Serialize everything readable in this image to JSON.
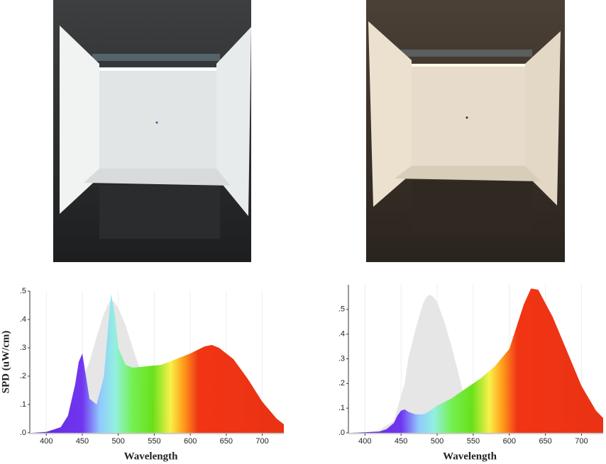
{
  "chart_data": [
    {
      "type": "area",
      "ylabel": "SPD (uW/cm)",
      "xlabel": "Wavelength",
      "x": [
        380,
        400,
        420,
        430,
        440,
        445,
        450,
        455,
        460,
        470,
        480,
        485,
        490,
        495,
        500,
        510,
        520,
        540,
        560,
        580,
        600,
        620,
        630,
        640,
        660,
        680,
        700,
        720,
        730
      ],
      "series": [
        {
          "color": "#e6e6e6",
          "values": [
            0,
            0.005,
            0.01,
            0.04,
            0.1,
            0.14,
            0.18,
            0.22,
            0.25,
            0.34,
            0.42,
            0.45,
            0.47,
            0.46,
            0.44,
            0.38,
            0.3,
            0.15,
            0.06,
            0.02,
            0,
            0,
            0,
            0,
            0,
            0,
            0,
            0,
            0
          ]
        },
        {
          "color": "spectrum",
          "values": [
            0,
            0.003,
            0.02,
            0.06,
            0.17,
            0.25,
            0.28,
            0.2,
            0.12,
            0.1,
            0.2,
            0.35,
            0.49,
            0.42,
            0.3,
            0.24,
            0.23,
            0.235,
            0.24,
            0.26,
            0.28,
            0.305,
            0.31,
            0.3,
            0.26,
            0.19,
            0.11,
            0.05,
            0.03
          ]
        }
      ],
      "xlim": [
        380,
        730
      ],
      "xticks": [
        400,
        450,
        500,
        550,
        600,
        650,
        700
      ],
      "ylim": [
        0,
        0.5
      ],
      "yticks": [
        {
          "value": 0,
          "label": ".0"
        },
        {
          "value": 0.1,
          "label": ".1"
        },
        {
          "value": 0.2,
          "label": ".2"
        },
        {
          "value": 0.3,
          "label": ".3"
        },
        {
          "value": 0.4,
          "label": ".4"
        },
        {
          "value": 0.5,
          "label": ".5"
        }
      ],
      "grid": true
    },
    {
      "type": "area",
      "xlabel": "Wavelength",
      "x": [
        380,
        400,
        420,
        430,
        440,
        445,
        450,
        455,
        460,
        470,
        480,
        485,
        490,
        495,
        500,
        510,
        520,
        540,
        560,
        580,
        600,
        620,
        630,
        640,
        660,
        680,
        700,
        720,
        730
      ],
      "series": [
        {
          "color": "#e6e6e6",
          "values": [
            0,
            0.003,
            0.01,
            0.03,
            0.05,
            0.1,
            0.15,
            0.2,
            0.3,
            0.42,
            0.52,
            0.55,
            0.56,
            0.55,
            0.53,
            0.45,
            0.35,
            0.12,
            0.04,
            0.01,
            0,
            0,
            0,
            0,
            0,
            0,
            0,
            0,
            0
          ]
        },
        {
          "color": "spectrum",
          "values": [
            0,
            0.002,
            0.005,
            0.015,
            0.04,
            0.07,
            0.09,
            0.095,
            0.085,
            0.075,
            0.075,
            0.08,
            0.09,
            0.1,
            0.11,
            0.125,
            0.14,
            0.18,
            0.22,
            0.27,
            0.34,
            0.52,
            0.585,
            0.58,
            0.47,
            0.33,
            0.19,
            0.09,
            0.06
          ]
        }
      ],
      "xlim": [
        380,
        730
      ],
      "xticks": [
        400,
        450,
        500,
        550,
        600,
        650,
        700
      ],
      "ylim": [
        0,
        0.6
      ],
      "yticks": [
        {
          "value": 0,
          "label": ".0"
        },
        {
          "value": 0.1,
          "label": ".1"
        },
        {
          "value": 0.2,
          "label": ".2"
        },
        {
          "value": 0.3,
          "label": ".3"
        },
        {
          "value": 0.4,
          "label": ".4"
        },
        {
          "value": 0.5,
          "label": ".5"
        }
      ],
      "grid": true
    }
  ]
}
